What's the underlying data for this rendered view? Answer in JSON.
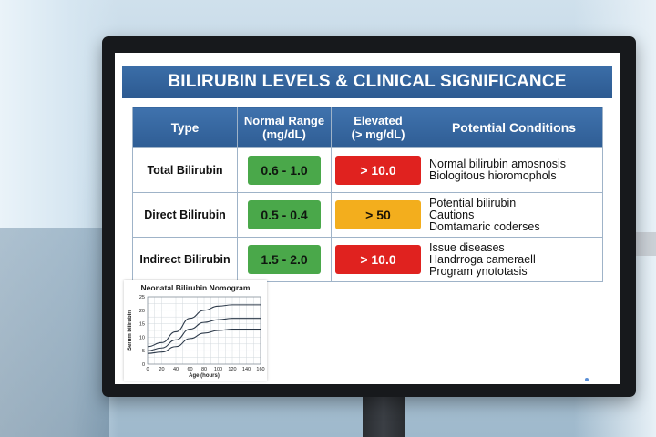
{
  "screen": {
    "title": "BILIRUBIN LEVELS & CLINICAL SIGNIFICANCE",
    "columns": [
      "Type",
      "Normal Range\n(mg/dL)",
      "Elevated\n(> mg/dL)",
      "Potential Conditions"
    ],
    "rows": [
      {
        "type": "Total Bilirubin",
        "normal": "0.6 - 1.0",
        "elevated": "> 10.0",
        "elevated_color": "#e0221f",
        "conditions": [
          "Normal bilirubin amosnosis",
          "Biologitous hioromophols"
        ]
      },
      {
        "type": "Direct Bilirubin",
        "normal": "0.5 - 0.4",
        "elevated": "> 50",
        "elevated_color": "#f3ae1d",
        "conditions": [
          "Potential bilirubin",
          "Cautions",
          "Domtamaric coderses"
        ]
      },
      {
        "type": "Indirect Bilirubin",
        "normal": "1.5 - 2.0",
        "elevated": "> 10.0",
        "elevated_color": "#e0221f",
        "conditions": [
          "Issue diseases",
          "Handrroga cameraell",
          "Program ynototasis"
        ]
      }
    ],
    "colors": {
      "header": "#2f5d94",
      "normal": "#4aa84a",
      "high": "#e0221f",
      "moderate": "#f3ae1d"
    }
  },
  "chart_data": {
    "type": "line",
    "title": "Neonatal Bilirubin Nomogram",
    "xlabel": "Age (hours)",
    "ylabel": "Serum bilirubin",
    "xlim": [
      0,
      160
    ],
    "ylim": [
      0,
      25
    ],
    "xticks": [
      0,
      20,
      40,
      60,
      80,
      100,
      120,
      140,
      160
    ],
    "yticks": [
      0,
      5,
      10,
      15,
      20,
      25
    ],
    "grid": true,
    "x": [
      0,
      20,
      40,
      60,
      80,
      100,
      120,
      140,
      160
    ],
    "series": [
      {
        "values": [
          6.5,
          8,
          12,
          17,
          20,
          21.5,
          22,
          22,
          22
        ]
      },
      {
        "values": [
          5,
          6,
          9,
          13,
          15.5,
          16.5,
          17,
          17,
          17
        ]
      },
      {
        "values": [
          4,
          4.5,
          6.5,
          9.5,
          11.5,
          12.5,
          13,
          13,
          13
        ]
      }
    ]
  }
}
